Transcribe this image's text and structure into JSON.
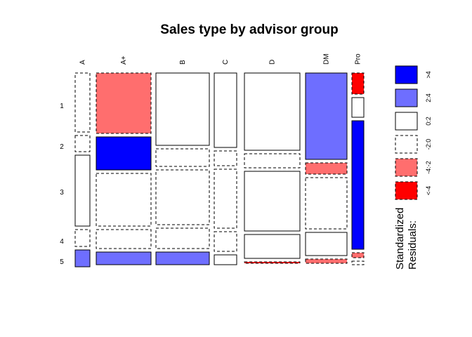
{
  "chart_data": {
    "type": "mosaic",
    "title": "Sales type by advisor group",
    "columns": [
      {
        "label": "A",
        "cells": [
          {
            "row": "1",
            "height": 84,
            "residual": "-2:0"
          },
          {
            "row": "2",
            "height": 23,
            "residual": "-2:0"
          },
          {
            "row": "3",
            "height": 101,
            "residual": "0:2"
          },
          {
            "row": "4",
            "height": 24,
            "residual": "-2:0"
          },
          {
            "row": "5",
            "height": 24,
            "residual": "2:4"
          }
        ]
      },
      {
        "label": "A+",
        "cells": [
          {
            "row": "1",
            "height": 86,
            "residual": "-4:-2"
          },
          {
            "row": "2",
            "height": 47,
            "residual": ">4"
          },
          {
            "row": "3",
            "height": 75,
            "residual": "-2:0"
          },
          {
            "row": "4",
            "height": 27,
            "residual": "-2:0"
          },
          {
            "row": "5",
            "height": 18,
            "residual": "2:4"
          }
        ]
      },
      {
        "label": "B",
        "cells": [
          {
            "row": "1",
            "height": 103,
            "residual": "0:2"
          },
          {
            "row": "2",
            "height": 25,
            "residual": "-2:0"
          },
          {
            "row": "3",
            "height": 78,
            "residual": "-2:0"
          },
          {
            "row": "4",
            "height": 29,
            "residual": "-2:0"
          },
          {
            "row": "5",
            "height": 18,
            "residual": "2:4"
          }
        ]
      },
      {
        "label": "C",
        "cells": [
          {
            "row": "1",
            "height": 106,
            "residual": "0:2"
          },
          {
            "row": "2",
            "height": 21,
            "residual": "-2:0"
          },
          {
            "row": "3",
            "height": 84,
            "residual": "-2:0"
          },
          {
            "row": "4",
            "height": 28,
            "residual": "-2:0"
          },
          {
            "row": "5",
            "height": 14,
            "residual": "0:2"
          }
        ]
      },
      {
        "label": "D",
        "cells": [
          {
            "row": "1",
            "height": 110,
            "residual": "0:2"
          },
          {
            "row": "2",
            "height": 20,
            "residual": "-2:0"
          },
          {
            "row": "3",
            "height": 85,
            "residual": "0:2"
          },
          {
            "row": "4",
            "height": 34,
            "residual": "0:2"
          },
          {
            "row": "5",
            "height": 2,
            "residual": "<-4"
          }
        ]
      },
      {
        "label": "DM",
        "cells": [
          {
            "row": "1",
            "height": 123,
            "residual": "2:4"
          },
          {
            "row": "2",
            "height": 16,
            "residual": "-4:-2"
          },
          {
            "row": "3",
            "height": 73,
            "residual": "-2:0"
          },
          {
            "row": "4",
            "height": 33,
            "residual": "0:2"
          },
          {
            "row": "5",
            "height": 6,
            "residual": "-4:-2"
          }
        ]
      },
      {
        "label": "Pro",
        "cells": [
          {
            "row": "1",
            "height": 30,
            "residual": "<-4"
          },
          {
            "row": "2",
            "height": 28,
            "residual": "0:2"
          },
          {
            "row": "3",
            "height": 183,
            "residual": ">4"
          },
          {
            "row": "4",
            "height": 7,
            "residual": "-4:-2"
          },
          {
            "row": "5",
            "height": 5,
            "residual": "-2:0"
          }
        ]
      }
    ],
    "rows": [
      "1",
      "2",
      "3",
      "4",
      "5"
    ],
    "legend": {
      "title_lines": [
        "Standardized",
        "Residuals:"
      ],
      "position": "right",
      "items": [
        {
          "label": ">4",
          "fill": "#0000ff",
          "dashed": false
        },
        {
          "label": "2:4",
          "fill": "#6e6eff",
          "dashed": false
        },
        {
          "label": "0:2",
          "fill": "#ffffff",
          "dashed": false
        },
        {
          "label": "-2:0",
          "fill": "#ffffff",
          "dashed": true
        },
        {
          "label": "-4:-2",
          "fill": "#ff6e6e",
          "dashed": true
        },
        {
          "label": "<-4",
          "fill": "#ff0000",
          "dashed": true
        }
      ]
    }
  }
}
